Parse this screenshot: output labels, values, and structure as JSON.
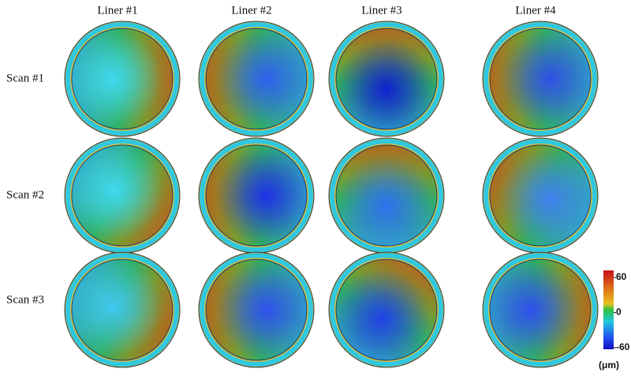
{
  "columns": [
    "Liner #1",
    "Liner #2",
    "Liner #3",
    "Liner #4"
  ],
  "rows": [
    "Scan #1",
    "Scan #2",
    "Scan #3"
  ],
  "colorbar": {
    "range": [
      -60,
      60
    ],
    "ticks": [
      60,
      0,
      -60
    ],
    "unit": "(μm)"
  }
}
